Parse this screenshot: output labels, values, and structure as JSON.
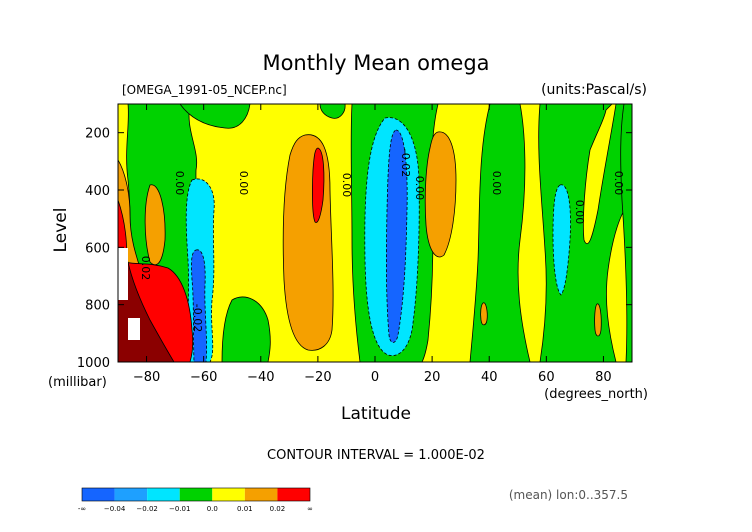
{
  "chart_data": {
    "type": "heatmap",
    "title": "Monthly Mean omega",
    "file_label": "[OMEGA_1991-05_NCEP.nc]",
    "units_label": "(units:Pascal/s)",
    "xlabel": "Latitude",
    "x_unit_label": "(degrees_north)",
    "ylabel": "Level",
    "y_unit_label": "(millibar)",
    "xlim": [
      -90,
      90
    ],
    "ylim": [
      1000,
      100
    ],
    "x_ticks": [
      -80,
      -60,
      -40,
      -20,
      0,
      20,
      40,
      60,
      80
    ],
    "x_tick_labels": [
      "−80",
      "−60",
      "−40",
      "−20",
      "0",
      "20",
      "40",
      "60",
      "80"
    ],
    "y_ticks": [
      200,
      400,
      600,
      800,
      1000
    ],
    "y_tick_labels": [
      "200",
      "400",
      "600",
      "800",
      "1000"
    ],
    "contour_interval_text": "CONTOUR INTERVAL = 1.000E-02",
    "footer_note": "(mean) lon:0..357.5",
    "contour_labels": [
      "0.00",
      "0.00",
      "0.00",
      "0.00",
      "0.00",
      "0.00",
      "0.00",
      "-0.02",
      "0.02",
      "-0.02"
    ],
    "legend": {
      "colors": [
        "#1565ff",
        "#1ea0ff",
        "#00e5ff",
        "#00d200",
        "#ffff00",
        "#f5a000",
        "#ff0000"
      ],
      "bins": [
        -0.05,
        -0.04,
        -0.02,
        -0.01,
        0.0,
        0.01,
        0.02,
        0.05
      ],
      "tick_labels": [
        "-∞",
        "−0.04",
        "−0.02",
        "−0.01",
        "0.0",
        "0.01",
        "0.02",
        "∞"
      ]
    },
    "bands": [
      {
        "level": "green",
        "lat_range": [
          -85,
          -63
        ],
        "pressure_range": [
          100,
          1000
        ]
      },
      {
        "level": "cyan",
        "lat_range": [
          -67,
          -57
        ],
        "pressure_range": [
          350,
          1000
        ]
      },
      {
        "level": "blue",
        "lat_range": [
          -62,
          -59
        ],
        "pressure_range": [
          640,
          1000
        ]
      },
      {
        "level": "red",
        "lat_range": [
          -90,
          -68
        ],
        "pressure_range": [
          700,
          1000
        ]
      },
      {
        "level": "orange",
        "lat_range": [
          -29,
          -11
        ],
        "pressure_range": [
          230,
          960
        ]
      },
      {
        "level": "red",
        "lat_range": [
          -22,
          -18
        ],
        "pressure_range": [
          270,
          510
        ]
      },
      {
        "level": "cyan",
        "lat_range": [
          -5,
          18
        ],
        "pressure_range": [
          150,
          990
        ]
      },
      {
        "level": "blue",
        "lat_range": [
          2,
          10
        ],
        "pressure_range": [
          200,
          940
        ]
      },
      {
        "level": "orange",
        "lat_range": [
          18,
          28
        ],
        "pressure_range": [
          290,
          680
        ]
      },
      {
        "level": "green",
        "lat_range": [
          34,
          50
        ],
        "pressure_range": [
          100,
          1000
        ]
      },
      {
        "level": "green",
        "lat_range": [
          52,
          80
        ],
        "pressure_range": [
          100,
          1000
        ]
      },
      {
        "level": "cyan",
        "lat_range": [
          62,
          67
        ],
        "pressure_range": [
          420,
          840
        ]
      },
      {
        "level": "green",
        "lat_range": [
          84,
          90
        ],
        "pressure_range": [
          100,
          1000
        ]
      }
    ]
  }
}
